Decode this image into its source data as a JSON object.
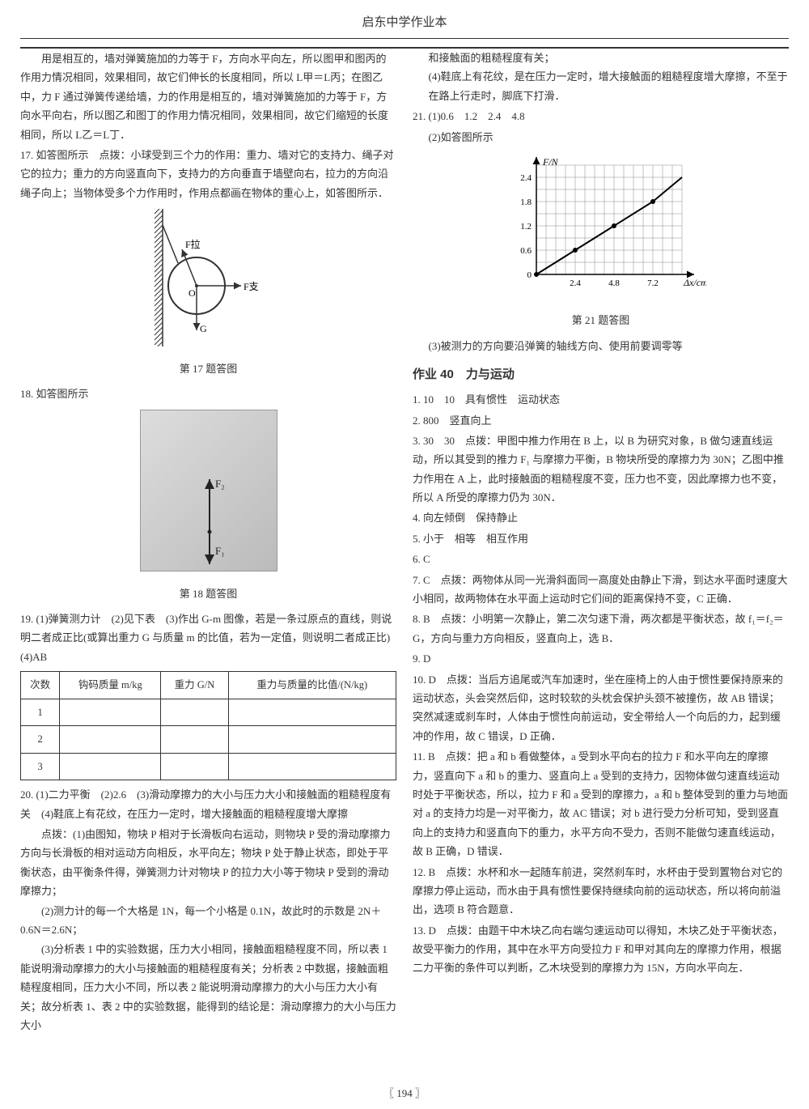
{
  "header": "启东中学作业本",
  "pageNumber": "194",
  "left": {
    "para16": "用是相互的，墙对弹簧施加的力等于 F，方向水平向左，所以图甲和图丙的作用力情况相同，效果相同，故它们伸长的长度相同，所以 L甲＝L丙；在图乙中，力 F 通过弹簧传递给墙，力的作用是相互的，墙对弹簧施加的力等于 F，方向水平向右，所以图乙和图丁的作用力情况相同，效果相同，故它们缩短的长度相同，所以 L乙＝L丁．",
    "q17": "17. 如答图所示　点拨：小球受到三个力的作用：重力、墙对它的支持力、绳子对它的拉力；重力的方向竖直向下，支持力的方向垂直于墙壁向右，拉力的方向沿绳子向上；当物体受多个力作用时，作用点都画在物体的重心上，如答图所示．",
    "fig17_caption": "第 17 题答图",
    "fig17_labels": {
      "F1": "F拉",
      "F2": "F支",
      "G": "G",
      "O": "O"
    },
    "q18": "18. 如答图所示",
    "fig18_caption": "第 18 题答图",
    "fig18_labels": {
      "F1": "F₁",
      "F2": "F₂"
    },
    "q19": "19. (1)弹簧测力计　(2)见下表　(3)作出 G-m 图像，若是一条过原点的直线，则说明二者成正比(或算出重力 G 与质量 m 的比值，若为一定值，则说明二者成正比)　(4)AB",
    "table": {
      "headers": [
        "次数",
        "钩码质量 m/kg",
        "重力 G/N",
        "重力与质量的比值/(N/kg)"
      ],
      "rows": [
        [
          "1",
          "",
          "",
          ""
        ],
        [
          "2",
          "",
          "",
          ""
        ],
        [
          "3",
          "",
          "",
          ""
        ]
      ]
    },
    "q20_1": "20. (1)二力平衡　(2)2.6　(3)滑动摩擦力的大小与压力大小和接触面的粗糙程度有关　(4)鞋底上有花纹，在压力一定时，增大接触面的粗糙程度增大摩擦",
    "q20_hint1": "点拨：(1)由图知，物块 P 相对于长滑板向右运动，则物块 P 受的滑动摩擦力方向与长滑板的相对运动方向相反，水平向左；物块 P 处于静止状态，即处于平衡状态，由平衡条件得，弹簧测力计对物块 P 的拉力大小等于物块 P 受到的滑动摩擦力；",
    "q20_hint2": "(2)测力计的每一个大格是 1N，每一个小格是 0.1N，故此时的示数是 2N＋0.6N＝2.6N；",
    "q20_hint3": "(3)分析表 1 中的实验数据，压力大小相同，接触面粗糙程度不同，所以表 1 能说明滑动摩擦力的大小与接触面的粗糙程度有关；分析表 2 中数据，接触面粗糙程度相同，压力大小不同，所以表 2 能说明滑动摩擦力的大小与压力大小有关；故分析表 1、表 2 中的实验数据，能得到的结论是：滑动摩擦力的大小与压力大小"
  },
  "right": {
    "cont1": "和接触面的粗糙程度有关；",
    "cont2": "(4)鞋底上有花纹，是在压力一定时，增大接触面的粗糙程度增大摩擦，不至于在路上行走时，脚底下打滑．",
    "q21_1": "21. (1)0.6　1.2　2.4　4.8",
    "q21_2": "(2)如答图所示",
    "fig21_caption": "第 21 题答图",
    "chart21": {
      "type": "line",
      "xlabel": "Δx/cm",
      "ylabel": "F/N",
      "xticks": [
        "2.4",
        "4.8",
        "7.2"
      ],
      "yticks": [
        "0",
        "0.6",
        "1.2",
        "1.8",
        "2.4"
      ],
      "xlim": [
        0,
        9.0
      ],
      "ylim": [
        0,
        2.7
      ],
      "points": [
        [
          0,
          0
        ],
        [
          2.4,
          0.6
        ],
        [
          4.8,
          1.2
        ],
        [
          7.2,
          1.8
        ],
        [
          9.6,
          2.4
        ]
      ],
      "background_color": "#ffffff",
      "grid_color": "#888888",
      "line_color": "#000000",
      "marker_color": "#000000",
      "axis_color": "#000000",
      "font_size": 11
    },
    "q21_3": "(3)被测力的方向要沿弹簧的轴线方向、使用前要调零等",
    "section_title_no": "作业 40",
    "section_title_txt": "力与运动",
    "q1": "1. 10　10　具有惯性　运动状态",
    "q2": "2. 800　竖直向上",
    "q3": "3. 30　30　点拨：甲图中推力作用在 B 上，以 B 为研究对象，B 做匀速直线运动，所以其受到的推力 F₁ 与摩擦力平衡，B 物块所受的摩擦力为 30N；乙图中推力作用在 A 上，此时接触面的粗糙程度不变，压力也不变，因此摩擦力也不变，所以 A 所受的摩擦力仍为 30N．",
    "q4": "4. 向左倾倒　保持静止",
    "q5": "5. 小于　相等　相互作用",
    "q6": "6. C",
    "q7": "7. C　点拨：两物体从同一光滑斜面同一高度处由静止下滑，到达水平面时速度大小相同，故两物体在水平面上运动时它们间的距离保持不变，C 正确．",
    "q8": "8. B　点拨：小明第一次静止，第二次匀速下滑，两次都是平衡状态，故 f₁＝f₂＝G，方向与重力方向相反，竖直向上，选 B．",
    "q9": "9. D",
    "q10": "10. D　点拨：当后方追尾或汽车加速时，坐在座椅上的人由于惯性要保持原来的运动状态，头会突然后仰，这时较软的头枕会保护头颈不被撞伤，故 AB 错误；突然减速或刹车时，人体由于惯性向前运动，安全带给人一个向后的力，起到缓冲的作用，故 C 错误，D 正确．",
    "q11": "11. B　点拨：把 a 和 b 看做整体，a 受到水平向右的拉力 F 和水平向左的摩擦力，竖直向下 a 和 b 的重力、竖直向上 a 受到的支持力，因物体做匀速直线运动时处于平衡状态，所以，拉力 F 和 a 受到的摩擦力，a 和 b 整体受到的重力与地面对 a 的支持力均是一对平衡力，故 AC 错误；对 b 进行受力分析可知，受到竖直向上的支持力和竖直向下的重力，水平方向不受力，否则不能做匀速直线运动，故 B 正确，D 错误．",
    "q12": "12. B　点拨：水杯和水一起随车前进，突然刹车时，水杯由于受到置物台对它的摩擦力停止运动，而水由于具有惯性要保持继续向前的运动状态，所以将向前溢出，选项 B 符合题意．",
    "q13": "13. D　点拨：由题干中木块乙向右端匀速运动可以得知，木块乙处于平衡状态，故受平衡力的作用，其中在水平方向受拉力 F 和甲对其向左的摩擦力作用，根据二力平衡的条件可以判断，乙木块受到的摩擦力为 15N，方向水平向左．"
  }
}
